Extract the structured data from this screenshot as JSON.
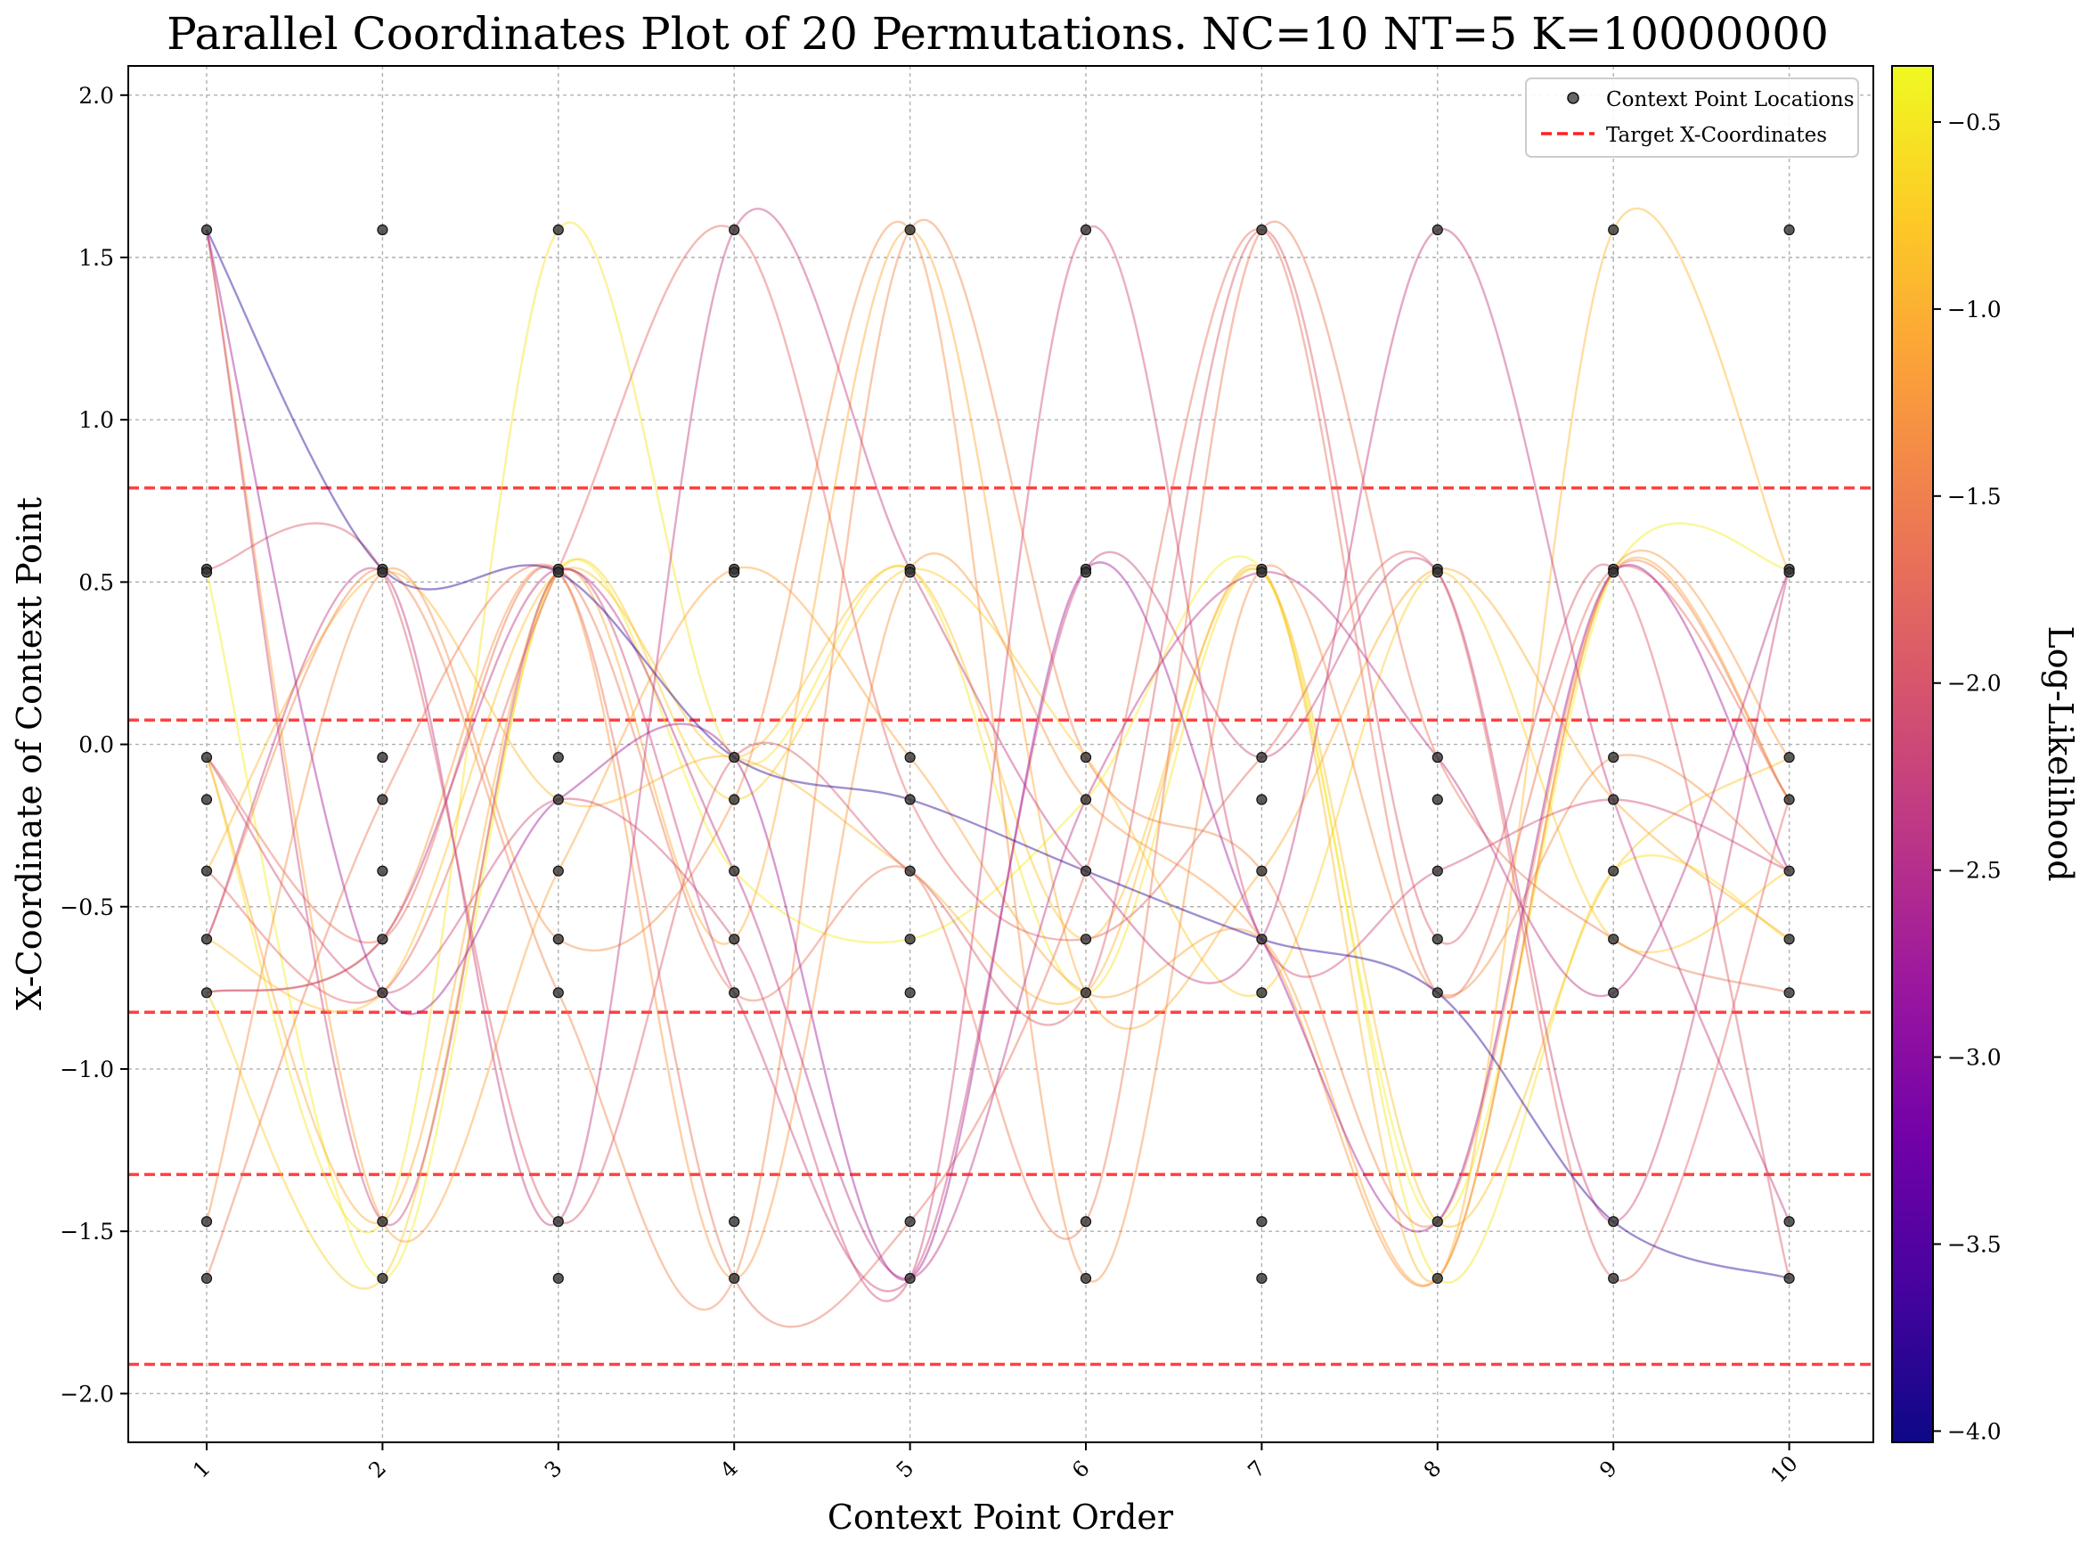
{
  "chart_data": {
    "type": "line",
    "title": "Parallel Coordinates Plot of 20 Permutations. NC=10 NT=5 K=10000000",
    "xlabel": "Context Point Order",
    "ylabel": "X-Coordinate of Context Point",
    "x_ticks": [
      "1",
      "2",
      "3",
      "4",
      "5",
      "6",
      "7",
      "8",
      "9",
      "10"
    ],
    "y_ticks": [
      2.0,
      1.5,
      1.0,
      0.5,
      0.0,
      -0.5,
      -1.0,
      -1.5,
      -2.0
    ],
    "y_tick_labels": [
      "2.0",
      "1.5",
      "1.0",
      "0.5",
      "0.0",
      "−0.5",
      "−1.0",
      "−1.5",
      "−2.0"
    ],
    "xlim": [
      0.55,
      10.45
    ],
    "ylim": [
      -2.15,
      2.09
    ],
    "grid": true,
    "legend_position": "top-right",
    "legend": [
      {
        "label": "Context Point Locations",
        "marker": "dot",
        "color": "#333333"
      },
      {
        "label": "Target X-Coordinates",
        "marker": "dashed-line",
        "color": "#ff2020"
      }
    ],
    "context_points": [
      1.585,
      0.54,
      0.53,
      -0.04,
      -0.17,
      -0.39,
      -0.6,
      -0.765,
      -1.47,
      -1.645
    ],
    "target_x_coordinates": [
      0.79,
      0.075,
      -0.825,
      -1.325,
      -1.91
    ],
    "colorbar": {
      "label": "Log-Likelihood",
      "min": -4.03,
      "max": -0.35,
      "ticks": [
        -0.5,
        -1.0,
        -1.5,
        -2.0,
        -2.5,
        -3.0,
        -3.5,
        -4.0
      ],
      "tick_labels": [
        "−0.5",
        "−1.0",
        "−1.5",
        "−2.0",
        "−2.5",
        "−3.0",
        "−3.5",
        "−4.0"
      ],
      "colormap": "plasma",
      "stops": [
        "#0d0887",
        "#46039f",
        "#7201a8",
        "#9c179e",
        "#bd3786",
        "#d8576b",
        "#ed7953",
        "#fb9f3a",
        "#fdca26",
        "#f0f921"
      ]
    },
    "series": [
      {
        "loglik": -3.8,
        "values": [
          1.585,
          0.54,
          0.53,
          -0.04,
          -0.17,
          -0.39,
          -0.6,
          -0.765,
          -1.47,
          -1.645
        ]
      },
      {
        "loglik": -2.7,
        "values": [
          1.585,
          -0.765,
          -0.17,
          -0.04,
          -1.645,
          0.54,
          -0.6,
          -1.47,
          0.53,
          -0.39
        ]
      },
      {
        "loglik": -2.4,
        "values": [
          -0.765,
          -0.6,
          0.54,
          -0.39,
          -1.645,
          -0.17,
          0.53,
          -0.04,
          -0.765,
          0.54
        ]
      },
      {
        "loglik": -2.3,
        "values": [
          -0.6,
          0.53,
          -1.47,
          1.585,
          0.54,
          -0.39,
          -0.6,
          1.585,
          -0.17,
          -1.47
        ]
      },
      {
        "loglik": -2.2,
        "values": [
          1.585,
          -1.47,
          0.53,
          -0.765,
          -1.645,
          0.54,
          -0.04,
          0.53,
          -1.47,
          0.54
        ]
      },
      {
        "loglik": -2.1,
        "values": [
          -0.04,
          -0.765,
          -0.17,
          -0.6,
          -1.645,
          1.585,
          -0.6,
          -0.39,
          -0.17,
          -0.39
        ]
      },
      {
        "loglik": -1.95,
        "values": [
          0.54,
          0.53,
          -1.47,
          -0.04,
          -0.39,
          -0.765,
          1.585,
          -0.6,
          0.54,
          -1.645
        ]
      },
      {
        "loglik": -1.8,
        "values": [
          -0.39,
          -0.765,
          0.54,
          1.585,
          -0.17,
          -0.6,
          -0.04,
          0.53,
          -1.645,
          -0.17
        ]
      },
      {
        "loglik": -1.7,
        "values": [
          -0.04,
          -0.6,
          0.53,
          -1.645,
          -1.47,
          -0.39,
          1.585,
          -0.765,
          0.54,
          -0.17
        ]
      },
      {
        "loglik": -1.6,
        "values": [
          -1.645,
          -0.17,
          0.54,
          -0.765,
          -0.39,
          -1.47,
          1.585,
          -0.04,
          -0.6,
          -0.765
        ]
      },
      {
        "loglik": -1.45,
        "values": [
          -0.6,
          0.54,
          -0.765,
          -1.645,
          1.585,
          -0.04,
          -0.39,
          -1.47,
          0.53,
          -0.17
        ]
      },
      {
        "loglik": -1.35,
        "values": [
          -1.47,
          0.53,
          -0.6,
          -0.17,
          1.585,
          -1.645,
          0.54,
          -0.765,
          -0.04,
          -0.39
        ]
      },
      {
        "loglik": -1.25,
        "values": [
          -0.765,
          -0.6,
          0.53,
          -1.645,
          0.54,
          -0.17,
          -0.6,
          -1.645,
          0.54,
          -0.04
        ]
      },
      {
        "loglik": -1.15,
        "values": [
          1.585,
          -1.47,
          -0.39,
          0.54,
          -0.04,
          -0.765,
          -0.6,
          -1.645,
          0.53,
          -0.17
        ]
      },
      {
        "loglik": -1.05,
        "values": [
          -0.04,
          -1.47,
          0.53,
          -0.6,
          1.585,
          -0.765,
          -0.39,
          0.54,
          -0.17,
          -0.6
        ]
      },
      {
        "loglik": -0.95,
        "values": [
          -0.39,
          0.53,
          -0.17,
          -0.04,
          -0.39,
          -0.765,
          0.54,
          -1.645,
          1.585,
          0.53
        ]
      },
      {
        "loglik": -0.85,
        "values": [
          -0.6,
          -0.765,
          0.53,
          -0.04,
          0.54,
          -0.6,
          0.53,
          -1.47,
          -0.39,
          -0.04
        ]
      },
      {
        "loglik": -0.75,
        "values": [
          -0.765,
          -1.645,
          0.53,
          -0.17,
          0.54,
          -0.04,
          -0.765,
          0.53,
          -0.6,
          -0.39
        ]
      },
      {
        "loglik": -0.55,
        "values": [
          -0.04,
          -1.47,
          1.585,
          -0.04,
          0.54,
          -0.765,
          0.53,
          -1.645,
          -0.39,
          -0.6
        ]
      },
      {
        "loglik": -0.45,
        "values": [
          0.53,
          -1.645,
          0.54,
          -0.39,
          -0.6,
          -0.17,
          0.54,
          -1.47,
          0.53,
          0.54
        ]
      }
    ]
  }
}
